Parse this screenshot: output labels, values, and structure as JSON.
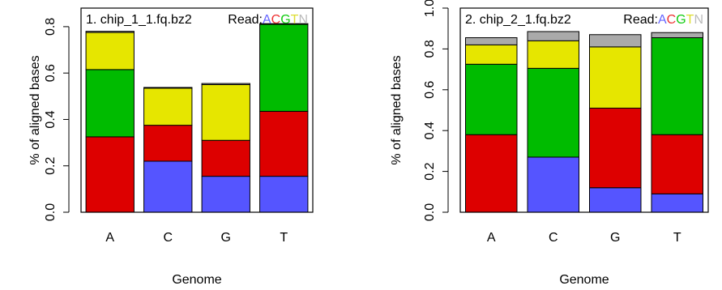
{
  "colors": {
    "A": "#5555ff",
    "C": "#dd0000",
    "G": "#00bb00",
    "T": "#e6e600",
    "N": "#aaaaaa",
    "read_A": "#6666ff",
    "read_C": "#ee3333",
    "read_G": "#11cc11",
    "read_T": "#dddd33",
    "read_N": "#bbbbbb"
  },
  "chart_data": [
    {
      "type": "bar",
      "stacked": true,
      "title": "1. chip_1_1.fq.bz2",
      "legend_prefix": "Read:",
      "legend_letters": [
        "A",
        "C",
        "G",
        "T",
        "N"
      ],
      "xlabel": "Genome",
      "ylabel": "% of aligned bases",
      "ylim": [
        0,
        0.88
      ],
      "yticks": [
        "0.0",
        "0.2",
        "0.4",
        "0.6",
        "0.8"
      ],
      "categories": [
        "A",
        "C",
        "G",
        "T"
      ],
      "series": [
        {
          "name": "A",
          "values": [
            0.0,
            0.22,
            0.155,
            0.155
          ]
        },
        {
          "name": "C",
          "values": [
            0.325,
            0.155,
            0.155,
            0.28
          ]
        },
        {
          "name": "G",
          "values": [
            0.29,
            0.0,
            0.0,
            0.375
          ]
        },
        {
          "name": "T",
          "values": [
            0.16,
            0.16,
            0.24,
            0.0
          ]
        },
        {
          "name": "N",
          "values": [
            0.005,
            0.003,
            0.005,
            0.003
          ]
        }
      ]
    },
    {
      "type": "bar",
      "stacked": true,
      "title": "2. chip_2_1.fq.bz2",
      "legend_prefix": "Read:",
      "legend_letters": [
        "A",
        "C",
        "G",
        "T",
        "N"
      ],
      "xlabel": "Genome",
      "ylabel": "% of aligned bases",
      "ylim": [
        0,
        1.0
      ],
      "yticks": [
        "0.0",
        "0.2",
        "0.4",
        "0.6",
        "0.8",
        "1.0"
      ],
      "categories": [
        "A",
        "C",
        "G",
        "T"
      ],
      "series": [
        {
          "name": "A",
          "values": [
            0.0,
            0.27,
            0.12,
            0.09
          ]
        },
        {
          "name": "C",
          "values": [
            0.38,
            0.0,
            0.39,
            0.29
          ]
        },
        {
          "name": "G",
          "values": [
            0.345,
            0.435,
            0.0,
            0.475
          ]
        },
        {
          "name": "T",
          "values": [
            0.095,
            0.135,
            0.3,
            0.0
          ]
        },
        {
          "name": "N",
          "values": [
            0.035,
            0.045,
            0.06,
            0.025
          ]
        }
      ]
    }
  ]
}
